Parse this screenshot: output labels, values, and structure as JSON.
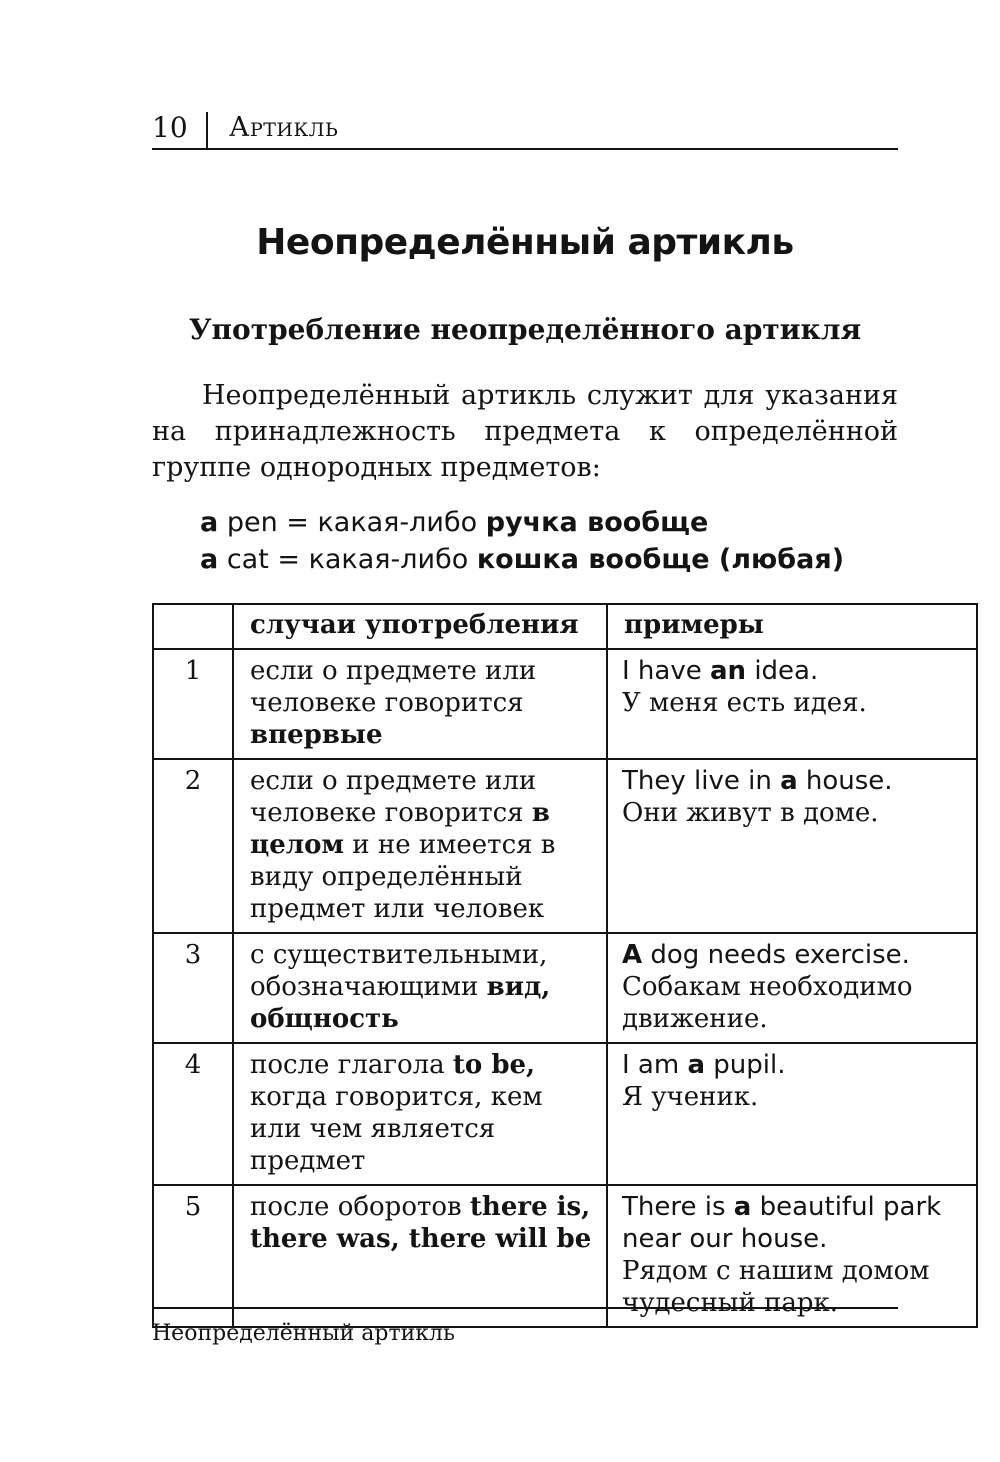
{
  "colors": {
    "background": "#ffffff",
    "text": "#141414",
    "rules": "#141414"
  },
  "header": {
    "page_number": "10",
    "chapter": "Артикль"
  },
  "title": "Неопределённый артикль",
  "subtitle": "Употребление неопределённого артикля",
  "intro": "Неопределённый артикль служит для указания на принадлежность предмета к определённой группе одно­родных предметов:",
  "examples": [
    [
      {
        "t": "a",
        "b": true
      },
      {
        "t": " pen = какая-либо "
      },
      {
        "t": "ручка вообще",
        "b": true
      }
    ],
    [
      {
        "t": "a",
        "b": true
      },
      {
        "t": " cat = какая-либо "
      },
      {
        "t": "кошка вообще (любая)",
        "b": true
      }
    ]
  ],
  "table": {
    "headers": {
      "num": "",
      "case": "случаи употребления",
      "example": "примеры"
    },
    "rows": [
      {
        "num": "1",
        "case": [
          {
            "t": "если о предмете или чело­веке говорится "
          },
          {
            "t": "впервые",
            "b": true
          }
        ],
        "example_en": [
          {
            "t": "I have "
          },
          {
            "t": "an",
            "b": true
          },
          {
            "t": " idea."
          }
        ],
        "example_ru": [
          {
            "t": "У меня есть идея."
          }
        ]
      },
      {
        "num": "2",
        "case": [
          {
            "t": "если о предмете или человеке говорится "
          },
          {
            "t": "в це­лом",
            "b": true
          },
          {
            "t": " и не имеется в виду определённый предмет или человек"
          }
        ],
        "example_en": [
          {
            "t": "They live in "
          },
          {
            "t": "a",
            "b": true
          },
          {
            "t": " house."
          }
        ],
        "example_ru": [
          {
            "t": "Они живут в доме."
          }
        ]
      },
      {
        "num": "3",
        "case": [
          {
            "t": "с существительными, обозначающими "
          },
          {
            "t": "вид, общность",
            "b": true
          }
        ],
        "example_en": [
          {
            "t": "A",
            "b": true
          },
          {
            "t": " dog needs exercise."
          }
        ],
        "example_ru": [
          {
            "t": "Собакам необходимо движение."
          }
        ]
      },
      {
        "num": "4",
        "case": [
          {
            "t": "после глагола "
          },
          {
            "t": "to be,",
            "b": true
          },
          {
            "t": " ког­да говорится, кем или чем является предмет"
          }
        ],
        "example_en": [
          {
            "t": "I am "
          },
          {
            "t": "a",
            "b": true
          },
          {
            "t": " pupil."
          }
        ],
        "example_ru": [
          {
            "t": "Я ученик."
          }
        ]
      },
      {
        "num": "5",
        "case": [
          {
            "t": "после оборотов "
          },
          {
            "t": "there is, there was, there will be",
            "b": true
          }
        ],
        "example_en": [
          {
            "t": "There is "
          },
          {
            "t": "a",
            "b": true
          },
          {
            "t": " beautiful park near our house."
          }
        ],
        "example_ru": [
          {
            "t": "Рядом с нашим домом чудесный парк."
          }
        ]
      }
    ]
  },
  "footer": "Неопределённый артикль"
}
